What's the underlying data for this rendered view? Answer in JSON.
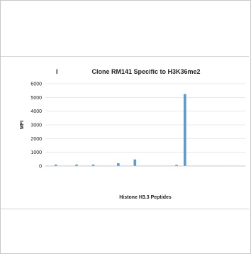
{
  "chart_data": {
    "type": "bar",
    "panel_label": "I",
    "title": "Clone RM141 Specific to H3K36me2",
    "xlabel": "Histone H3.3 Peptides",
    "ylabel": "MFI",
    "ylim": [
      0,
      6000
    ],
    "yticks": [
      0,
      1000,
      2000,
      3000,
      4000,
      5000,
      6000
    ],
    "grid": true,
    "bar_color": "#5b9bd5",
    "categories": [
      "",
      "",
      "",
      "",
      "",
      "",
      "",
      "",
      "",
      "",
      "",
      "",
      "",
      "",
      "",
      "",
      "",
      "",
      "",
      "",
      "",
      "",
      "",
      "",
      "",
      "",
      "",
      "",
      "",
      "",
      "",
      "",
      "",
      "",
      "",
      "",
      "",
      "",
      "",
      "",
      "",
      "",
      "",
      "",
      "",
      "",
      "",
      ""
    ],
    "values": [
      20,
      20,
      110,
      20,
      20,
      20,
      20,
      110,
      20,
      20,
      20,
      110,
      20,
      20,
      20,
      20,
      20,
      200,
      20,
      20,
      20,
      480,
      20,
      20,
      20,
      20,
      20,
      20,
      20,
      20,
      20,
      90,
      20,
      5250,
      20,
      20,
      20,
      20,
      20,
      20,
      20,
      20,
      20,
      20,
      20,
      20,
      20,
      20
    ]
  }
}
